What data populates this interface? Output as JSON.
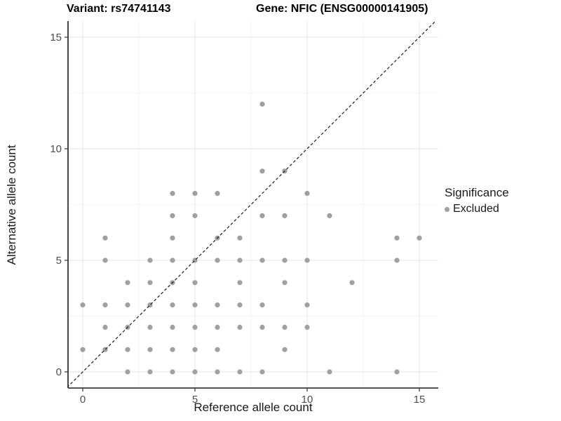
{
  "chart_data": {
    "type": "scatter",
    "title_variant": "Variant: rs74741143",
    "title_gene": "Gene: NFIC (ENSG00000141905)",
    "xlabel": "Reference allele count",
    "ylabel": "Alternative allele count",
    "xlim": [
      -0.7,
      15.8
    ],
    "ylim": [
      -0.7,
      15.7
    ],
    "xticks": [
      0,
      5,
      10,
      15
    ],
    "yticks": [
      0,
      5,
      10,
      15
    ],
    "minor_gridlines": [
      2.5,
      7.5,
      12.5
    ],
    "grid": {
      "major_color": "#ebebeb",
      "minor_color": "#f5f5f5"
    },
    "identity_line": {
      "slope": 1,
      "intercept": 0,
      "style": "dashed",
      "color": "#1a1a1a"
    },
    "point_radius": 3.6,
    "series": [
      {
        "name": "Excluded",
        "color": "#a0a0a0",
        "points": [
          [
            2,
            0
          ],
          [
            3,
            0
          ],
          [
            4,
            0
          ],
          [
            5,
            0
          ],
          [
            6,
            0
          ],
          [
            7,
            0
          ],
          [
            8,
            0
          ],
          [
            11,
            0
          ],
          [
            14,
            0
          ],
          [
            0,
            1
          ],
          [
            1,
            1
          ],
          [
            2,
            1
          ],
          [
            3,
            1
          ],
          [
            4,
            1
          ],
          [
            5,
            1
          ],
          [
            6,
            1
          ],
          [
            9,
            1
          ],
          [
            1,
            2
          ],
          [
            2,
            2
          ],
          [
            3,
            2
          ],
          [
            4,
            2
          ],
          [
            5,
            2
          ],
          [
            6,
            2
          ],
          [
            7,
            2
          ],
          [
            8,
            2
          ],
          [
            9,
            2
          ],
          [
            10,
            2
          ],
          [
            0,
            3
          ],
          [
            1,
            3
          ],
          [
            2,
            3
          ],
          [
            3,
            3
          ],
          [
            4,
            3
          ],
          [
            5,
            3
          ],
          [
            6,
            3
          ],
          [
            7,
            3
          ],
          [
            8,
            3
          ],
          [
            10,
            3
          ],
          [
            2,
            4
          ],
          [
            3,
            4
          ],
          [
            4,
            4
          ],
          [
            5,
            4
          ],
          [
            7,
            4
          ],
          [
            9,
            4
          ],
          [
            12,
            4
          ],
          [
            1,
            5
          ],
          [
            3,
            5
          ],
          [
            4,
            5
          ],
          [
            5,
            5
          ],
          [
            6,
            5
          ],
          [
            7,
            5
          ],
          [
            8,
            5
          ],
          [
            9,
            5
          ],
          [
            10,
            5
          ],
          [
            14,
            5
          ],
          [
            1,
            6
          ],
          [
            4,
            6
          ],
          [
            6,
            6
          ],
          [
            7,
            6
          ],
          [
            14,
            6
          ],
          [
            15,
            6
          ],
          [
            4,
            7
          ],
          [
            5,
            7
          ],
          [
            8,
            7
          ],
          [
            9,
            7
          ],
          [
            11,
            7
          ],
          [
            4,
            8
          ],
          [
            5,
            8
          ],
          [
            6,
            8
          ],
          [
            10,
            8
          ],
          [
            8,
            9
          ],
          [
            9,
            9
          ],
          [
            8,
            12
          ]
        ]
      }
    ],
    "legend": {
      "title": "Significance",
      "position": "right",
      "items": [
        {
          "label": "Excluded",
          "color": "#a0a0a0"
        }
      ]
    }
  }
}
